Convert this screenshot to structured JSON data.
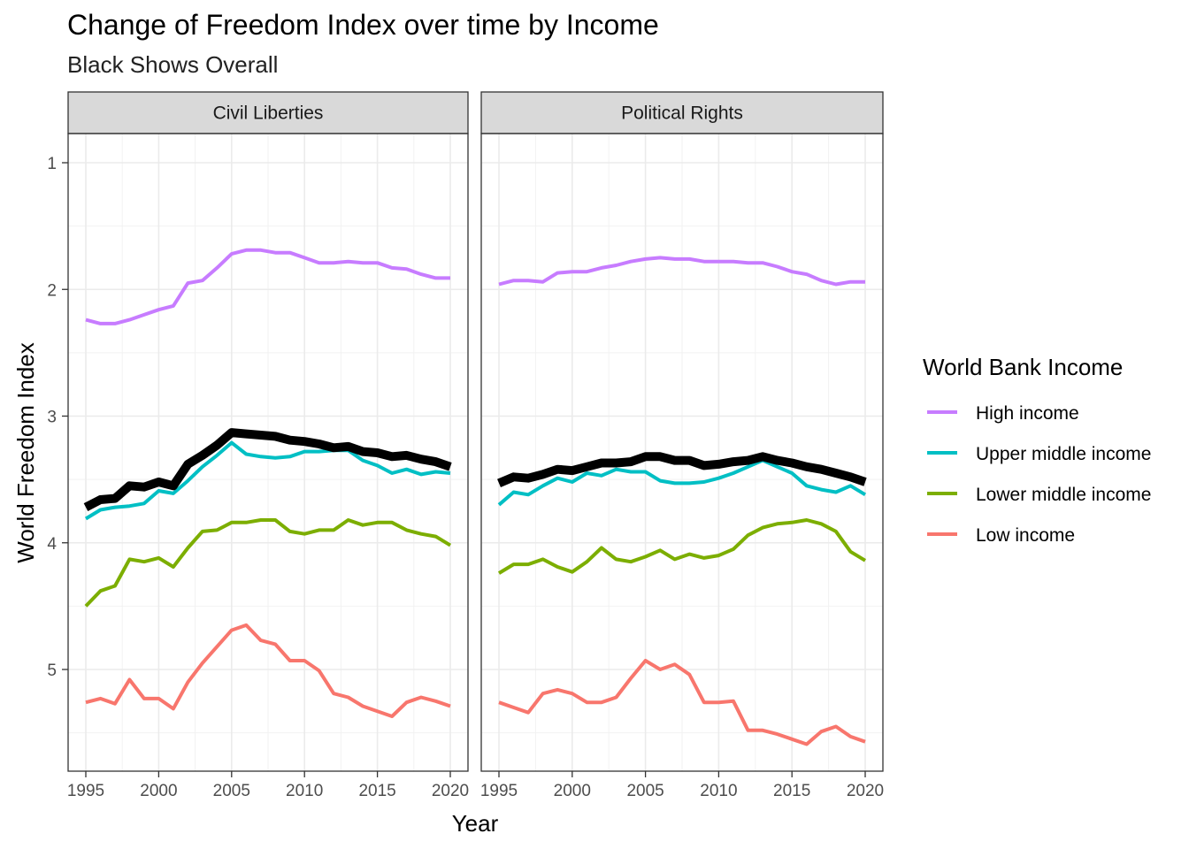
{
  "chart_data": {
    "type": "line",
    "title": "Change of Freedom Index over time by Income",
    "subtitle": "Black Shows Overall",
    "xlabel": "Year",
    "ylabel": "World Freedom Index",
    "xlim": [
      1995,
      2020
    ],
    "ylim": [
      1,
      5.8
    ],
    "y_reversed": true,
    "x_ticks": [
      1995,
      2000,
      2005,
      2010,
      2015,
      2020
    ],
    "y_ticks": [
      1,
      2,
      3,
      4,
      5
    ],
    "grid": true,
    "legend_title": "World Bank Income",
    "legend_position": "right",
    "x": [
      1995,
      1996,
      1997,
      1998,
      1999,
      2000,
      2001,
      2002,
      2003,
      2004,
      2005,
      2006,
      2007,
      2008,
      2009,
      2010,
      2011,
      2012,
      2013,
      2014,
      2015,
      2016,
      2017,
      2018,
      2019,
      2020
    ],
    "series_meta": [
      {
        "name": "High income",
        "color": "#C77CFF"
      },
      {
        "name": "Upper middle income",
        "color": "#00BFC4"
      },
      {
        "name": "Lower middle income",
        "color": "#7CAE00"
      },
      {
        "name": "Low income",
        "color": "#F8766D"
      }
    ],
    "overall_color": "#000000",
    "facets": [
      {
        "label": "Civil Liberties",
        "series": {
          "High income": [
            2.24,
            2.27,
            2.27,
            2.24,
            2.2,
            2.16,
            2.13,
            1.95,
            1.93,
            1.83,
            1.72,
            1.69,
            1.69,
            1.71,
            1.71,
            1.75,
            1.79,
            1.79,
            1.78,
            1.79,
            1.79,
            1.83,
            1.84,
            1.88,
            1.91,
            1.91
          ],
          "Upper middle income": [
            3.81,
            3.74,
            3.72,
            3.71,
            3.69,
            3.59,
            3.61,
            3.51,
            3.4,
            3.31,
            3.21,
            3.3,
            3.32,
            3.33,
            3.32,
            3.28,
            3.28,
            3.27,
            3.27,
            3.35,
            3.39,
            3.45,
            3.42,
            3.46,
            3.44,
            3.45
          ],
          "Lower middle income": [
            4.5,
            4.38,
            4.34,
            4.13,
            4.15,
            4.12,
            4.19,
            4.04,
            3.91,
            3.9,
            3.84,
            3.84,
            3.82,
            3.82,
            3.91,
            3.93,
            3.9,
            3.9,
            3.82,
            3.86,
            3.84,
            3.84,
            3.9,
            3.93,
            3.95,
            4.02
          ],
          "Low income": [
            5.26,
            5.23,
            5.27,
            5.08,
            5.23,
            5.23,
            5.31,
            5.1,
            4.95,
            4.82,
            4.69,
            4.65,
            4.77,
            4.8,
            4.93,
            4.93,
            5.01,
            5.19,
            5.22,
            5.29,
            5.33,
            5.37,
            5.26,
            5.22,
            5.25,
            5.29
          ],
          "Overall": [
            3.72,
            3.66,
            3.65,
            3.55,
            3.56,
            3.52,
            3.55,
            3.38,
            3.31,
            3.23,
            3.13,
            3.14,
            3.15,
            3.16,
            3.19,
            3.2,
            3.22,
            3.25,
            3.24,
            3.28,
            3.29,
            3.32,
            3.31,
            3.34,
            3.36,
            3.4
          ]
        }
      },
      {
        "label": "Political Rights",
        "series": {
          "High income": [
            1.96,
            1.93,
            1.93,
            1.94,
            1.87,
            1.86,
            1.86,
            1.83,
            1.81,
            1.78,
            1.76,
            1.75,
            1.76,
            1.76,
            1.78,
            1.78,
            1.78,
            1.79,
            1.79,
            1.82,
            1.86,
            1.88,
            1.93,
            1.96,
            1.94,
            1.94
          ],
          "Upper middle income": [
            3.7,
            3.6,
            3.62,
            3.55,
            3.49,
            3.52,
            3.45,
            3.47,
            3.42,
            3.44,
            3.44,
            3.51,
            3.53,
            3.53,
            3.52,
            3.49,
            3.45,
            3.4,
            3.35,
            3.4,
            3.45,
            3.55,
            3.58,
            3.6,
            3.55,
            3.62
          ],
          "Lower middle income": [
            4.24,
            4.17,
            4.17,
            4.13,
            4.19,
            4.23,
            4.15,
            4.04,
            4.13,
            4.15,
            4.11,
            4.06,
            4.13,
            4.09,
            4.12,
            4.1,
            4.05,
            3.94,
            3.88,
            3.85,
            3.84,
            3.82,
            3.85,
            3.91,
            4.07,
            4.14
          ],
          "Low income": [
            5.26,
            5.3,
            5.34,
            5.19,
            5.16,
            5.19,
            5.26,
            5.26,
            5.22,
            5.07,
            4.93,
            5.0,
            4.96,
            5.04,
            5.26,
            5.26,
            5.25,
            5.48,
            5.48,
            5.51,
            5.55,
            5.59,
            5.49,
            5.45,
            5.53,
            5.57
          ],
          "Overall": [
            3.53,
            3.48,
            3.49,
            3.46,
            3.42,
            3.43,
            3.4,
            3.37,
            3.37,
            3.36,
            3.32,
            3.32,
            3.35,
            3.35,
            3.39,
            3.38,
            3.36,
            3.35,
            3.32,
            3.35,
            3.37,
            3.4,
            3.42,
            3.45,
            3.48,
            3.52
          ]
        }
      }
    ]
  }
}
